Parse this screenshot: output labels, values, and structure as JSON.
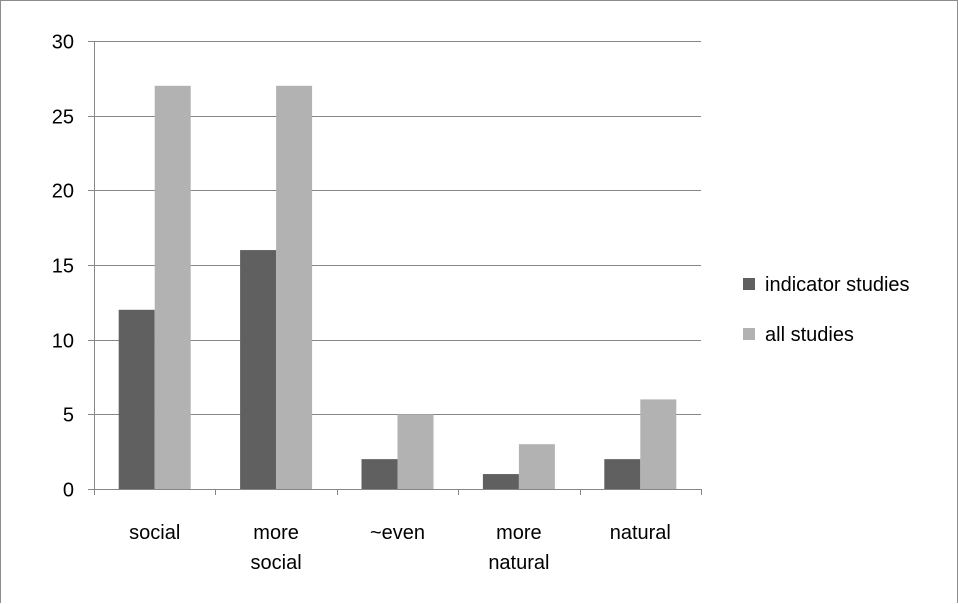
{
  "chart_data": {
    "type": "bar",
    "categories": [
      [
        "social"
      ],
      [
        "more",
        "social"
      ],
      [
        "~even"
      ],
      [
        "more",
        "natural"
      ],
      [
        "natural"
      ]
    ],
    "series": [
      {
        "name": "indicator studies",
        "values": [
          12,
          16,
          2,
          1,
          2
        ],
        "color": "#606060"
      },
      {
        "name": "all studies",
        "values": [
          27,
          27,
          5,
          3,
          6
        ],
        "color": "#b2b2b2"
      }
    ],
    "ylim": [
      0,
      30
    ],
    "yticks": [
      0,
      5,
      10,
      15,
      20,
      25,
      30
    ],
    "grid": true,
    "legend_position": "right",
    "title": "",
    "xlabel": "",
    "ylabel": ""
  }
}
